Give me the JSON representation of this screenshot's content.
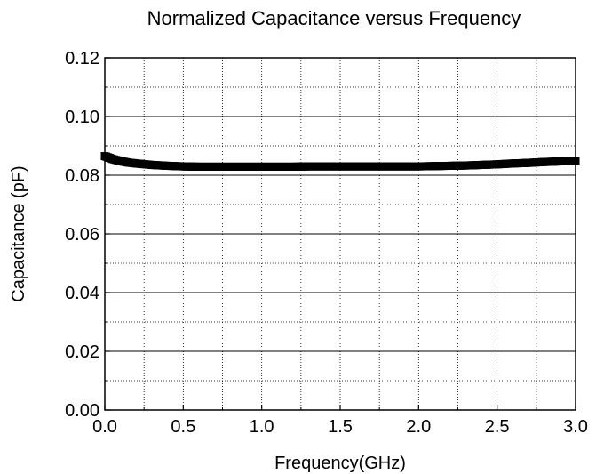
{
  "chart_data": {
    "type": "scatter",
    "title": "Normalized Capacitance versus Frequency",
    "xlabel": "Frequency(GHz)",
    "ylabel": "Capacitance (pF)",
    "xlim": [
      0.0,
      3.0
    ],
    "ylim": [
      0.0,
      0.12
    ],
    "xticks": [
      "0.0",
      "0.5",
      "1.0",
      "1.5",
      "2.0",
      "2.5",
      "3.0"
    ],
    "yticks": [
      "0.00",
      "0.02",
      "0.04",
      "0.06",
      "0.08",
      "0.10",
      "0.12"
    ],
    "grid": true,
    "marker": "square",
    "color": "#000000",
    "series": [
      {
        "x": [
          0.0,
          0.05,
          0.1,
          0.15,
          0.2,
          0.3,
          0.4,
          0.5,
          0.6,
          0.7,
          0.8,
          0.9,
          1.0,
          1.1,
          1.2,
          1.3,
          1.4,
          1.5,
          1.6,
          1.7,
          1.8,
          1.9,
          2.0,
          2.1,
          2.2,
          2.3,
          2.4,
          2.5,
          2.6,
          2.7,
          2.8,
          2.9,
          3.0
        ],
        "y": [
          0.0865,
          0.0855,
          0.0848,
          0.0843,
          0.084,
          0.0835,
          0.0832,
          0.083,
          0.0829,
          0.0829,
          0.0829,
          0.0829,
          0.0829,
          0.0829,
          0.0829,
          0.083,
          0.083,
          0.083,
          0.083,
          0.083,
          0.083,
          0.083,
          0.083,
          0.0831,
          0.0832,
          0.0833,
          0.0835,
          0.0837,
          0.084,
          0.0842,
          0.0845,
          0.0847,
          0.085
        ]
      }
    ]
  }
}
